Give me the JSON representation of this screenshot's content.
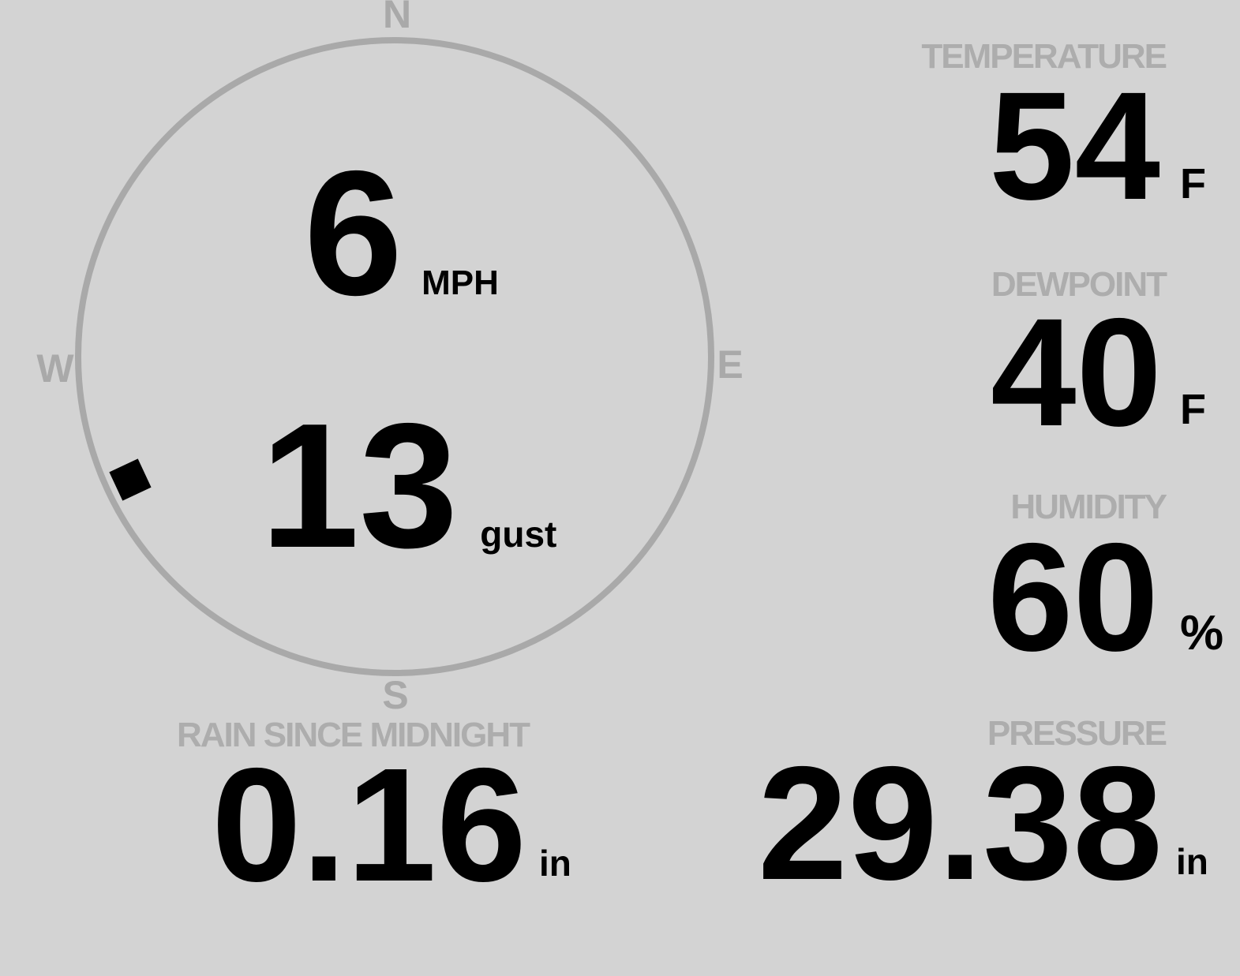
{
  "colors": {
    "background": "#d3d3d3",
    "label_gray": "#adadad",
    "compass_gray": "#a9a9a9",
    "value_black": "#000000"
  },
  "compass": {
    "cardinals": {
      "north": "N",
      "east": "E",
      "south": "S",
      "west": "W"
    },
    "wind_speed": {
      "value": "6",
      "unit": "MPH"
    },
    "wind_gust": {
      "value": "13",
      "unit": "gust"
    },
    "wind_direction_deg": 245
  },
  "metrics": {
    "temperature": {
      "label": "TEMPERATURE",
      "value": "54",
      "unit": "F"
    },
    "dewpoint": {
      "label": "DEWPOINT",
      "value": "40",
      "unit": "F"
    },
    "humidity": {
      "label": "HUMIDITY",
      "value": "60",
      "unit": "%"
    },
    "pressure": {
      "label": "PRESSURE",
      "value": "29.38",
      "unit": "in"
    },
    "rain": {
      "label": "RAIN SINCE MIDNIGHT",
      "value": "0.16",
      "unit": "in"
    }
  }
}
